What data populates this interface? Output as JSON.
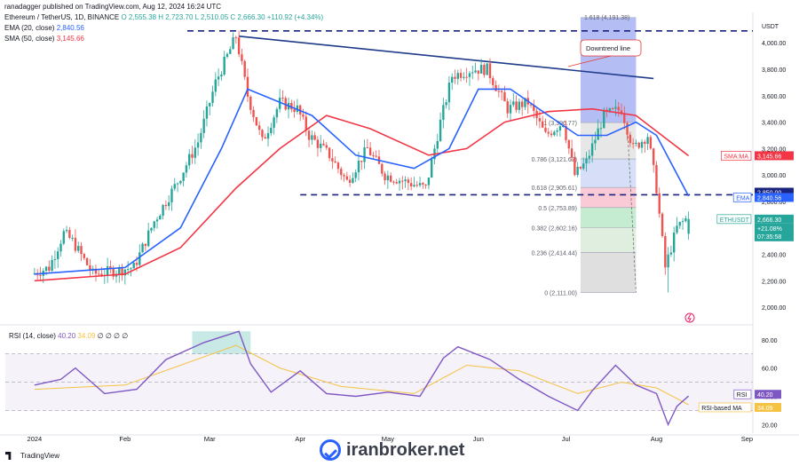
{
  "header": {
    "published": "ranadagger published on TradingView.com, Aug 12, 2024 16:24 UTC",
    "symbol": "Ethereum / TetherUS, 1D, BINANCE",
    "ohlc": "O 2,555.38  H 2,723.70  L 2,510.05  C 2,666.30  +110.92 (+4.34%)",
    "ema_label": "EMA (20, close)",
    "ema_value": "2,840.56",
    "sma_label": "SMA (50, close)",
    "sma_value": "3,145.66"
  },
  "rsi_header": {
    "label": "RSI (14, close)",
    "rsi": "40.20",
    "ma": "34.09",
    "extra": "∅ ∅ ∅ ∅"
  },
  "footer": {
    "brand": "TradingView"
  },
  "watermark": "iranbroker.net",
  "colors": {
    "up": "#26a69a",
    "down": "#ef5350",
    "ema": "#2962ff",
    "sma": "#f23645",
    "rsi": "#7e57c2",
    "rsi_ma": "#f5c242",
    "trend": "#1e3a8a",
    "level": "#1a237e"
  },
  "chart_data": [
    {
      "type": "candlestick",
      "symbol": "ETHUSDT",
      "price_axis": {
        "label": "USDT",
        "ticks": [
          "4,000.00",
          "3,800.00",
          "3,600.00",
          "3,400.00",
          "3,200.00",
          "3,000.00",
          "2,800.00",
          "2,600.00",
          "2,400.00",
          "2,200.00",
          "2,000.00"
        ],
        "range": [
          1960,
          4230
        ]
      },
      "x_axis": {
        "ticks": [
          "2024",
          "Feb",
          "Mar",
          "Apr",
          "May",
          "Jun",
          "Jul",
          "Aug",
          "Sep"
        ]
      },
      "price_path": [
        [
          "2024-01-01",
          2250
        ],
        [
          "2024-01-07",
          2300
        ],
        [
          "2024-01-12",
          2560
        ],
        [
          "2024-01-15",
          2500
        ],
        [
          "2024-01-22",
          2250
        ],
        [
          "2024-01-28",
          2270
        ],
        [
          "2024-02-05",
          2300
        ],
        [
          "2024-02-12",
          2650
        ],
        [
          "2024-02-20",
          2950
        ],
        [
          "2024-02-27",
          3250
        ],
        [
          "2024-03-04",
          3700
        ],
        [
          "2024-03-11",
          4050
        ],
        [
          "2024-03-15",
          3600
        ],
        [
          "2024-03-20",
          3250
        ],
        [
          "2024-03-26",
          3550
        ],
        [
          "2024-04-01",
          3500
        ],
        [
          "2024-04-05",
          3300
        ],
        [
          "2024-04-12",
          3150
        ],
        [
          "2024-04-18",
          2950
        ],
        [
          "2024-04-25",
          3200
        ],
        [
          "2024-05-01",
          3000
        ],
        [
          "2024-05-08",
          2950
        ],
        [
          "2024-05-15",
          2900
        ],
        [
          "2024-05-20",
          3400
        ],
        [
          "2024-05-24",
          3750
        ],
        [
          "2024-05-31",
          3800
        ],
        [
          "2024-06-05",
          3800
        ],
        [
          "2024-06-12",
          3500
        ],
        [
          "2024-06-19",
          3550
        ],
        [
          "2024-06-25",
          3300
        ],
        [
          "2024-07-01",
          3400
        ],
        [
          "2024-07-05",
          3000
        ],
        [
          "2024-07-09",
          3100
        ],
        [
          "2024-07-15",
          3450
        ],
        [
          "2024-07-21",
          3500
        ],
        [
          "2024-07-25",
          3200
        ],
        [
          "2024-07-30",
          3300
        ],
        [
          "2024-08-02",
          2900
        ],
        [
          "2024-08-05",
          2300
        ],
        [
          "2024-08-09",
          2600
        ],
        [
          "2024-08-12",
          2666
        ]
      ],
      "last_candle": {
        "open": 2555.38,
        "high": 2723.7,
        "low": 2510.05,
        "close": 2666.3
      },
      "lows_marked": [
        [
          "2024-08-05",
          2111
        ]
      ],
      "ema20": [
        [
          "2024-01-01",
          2250
        ],
        [
          "2024-02-01",
          2300
        ],
        [
          "2024-02-20",
          2600
        ],
        [
          "2024-03-05",
          3200
        ],
        [
          "2024-03-14",
          3650
        ],
        [
          "2024-03-25",
          3550
        ],
        [
          "2024-04-05",
          3450
        ],
        [
          "2024-04-20",
          3150
        ],
        [
          "2024-05-10",
          3050
        ],
        [
          "2024-05-22",
          3200
        ],
        [
          "2024-06-01",
          3650
        ],
        [
          "2024-06-12",
          3650
        ],
        [
          "2024-06-25",
          3450
        ],
        [
          "2024-07-05",
          3300
        ],
        [
          "2024-07-15",
          3300
        ],
        [
          "2024-07-25",
          3400
        ],
        [
          "2024-08-01",
          3300
        ],
        [
          "2024-08-12",
          2840.56
        ]
      ],
      "sma50": [
        [
          "2024-01-01",
          2200
        ],
        [
          "2024-02-01",
          2250
        ],
        [
          "2024-02-20",
          2450
        ],
        [
          "2024-03-10",
          2900
        ],
        [
          "2024-03-25",
          3200
        ],
        [
          "2024-04-10",
          3450
        ],
        [
          "2024-04-25",
          3350
        ],
        [
          "2024-05-15",
          3150
        ],
        [
          "2024-05-28",
          3200
        ],
        [
          "2024-06-10",
          3400
        ],
        [
          "2024-06-25",
          3480
        ],
        [
          "2024-07-10",
          3500
        ],
        [
          "2024-07-25",
          3450
        ],
        [
          "2024-08-12",
          3145.66
        ]
      ],
      "downtrend_line": {
        "from": [
          "2024-03-11",
          4050
        ],
        "to": [
          "2024-07-31",
          3730
        ],
        "label": "Downtrend line"
      },
      "horizontal_levels": [
        4090,
        2850
      ],
      "fibonacci": [
        {
          "ratio": "1.618",
          "price": 4191.38,
          "text": "1.618 (4,191.38)"
        },
        {
          "ratio": "1",
          "price": 3396.77,
          "text": "1 (3,396.77)"
        },
        {
          "ratio": "0.786",
          "price": 3121.67,
          "text": "0.786 (3,121.67)"
        },
        {
          "ratio": "0.618",
          "price": 2905.61,
          "text": "0.618 (2,905.61)"
        },
        {
          "ratio": "0.5",
          "price": 2753.89,
          "text": "0.5 (2,753.89)"
        },
        {
          "ratio": "0.382",
          "price": 2602.16,
          "text": "0.382 (2,602.16)"
        },
        {
          "ratio": "0.236",
          "price": 2414.44,
          "text": "0.236 (2,414.44)"
        },
        {
          "ratio": "0",
          "price": 2111.0,
          "text": "0 (2,111.00)"
        }
      ],
      "price_tags": [
        {
          "text": "SMA:MA",
          "value": "3,145.66",
          "color": "#f23645",
          "price": 3145.66
        },
        {
          "text": "",
          "value": "2,850.00",
          "color": "#1a237e",
          "price": 2870
        },
        {
          "text": "EMA",
          "value": "2,840.56",
          "color": "#2962ff",
          "price": 2830
        },
        {
          "text": "ETHUSDT",
          "value": "2,666.30",
          "color": "#26a69a",
          "price": 2666.3
        }
      ],
      "price_tag_extra": [
        "+21.08%",
        "07:35:58"
      ]
    },
    {
      "type": "line",
      "title": "RSI (14, close)",
      "y_ticks": [
        "80.00",
        "60.00",
        "40.00",
        "20.00"
      ],
      "range": [
        14,
        88
      ],
      "band": [
        30,
        70
      ],
      "rsi": [
        [
          "2024-01-01",
          48
        ],
        [
          "2024-01-10",
          52
        ],
        [
          "2024-01-15",
          60
        ],
        [
          "2024-01-25",
          42
        ],
        [
          "2024-02-05",
          45
        ],
        [
          "2024-02-15",
          66
        ],
        [
          "2024-02-28",
          78
        ],
        [
          "2024-03-05",
          82
        ],
        [
          "2024-03-11",
          86
        ],
        [
          "2024-03-15",
          63
        ],
        [
          "2024-03-22",
          43
        ],
        [
          "2024-04-01",
          58
        ],
        [
          "2024-04-10",
          42
        ],
        [
          "2024-04-20",
          40
        ],
        [
          "2024-05-01",
          43
        ],
        [
          "2024-05-12",
          40
        ],
        [
          "2024-05-20",
          67
        ],
        [
          "2024-05-25",
          75
        ],
        [
          "2024-06-05",
          66
        ],
        [
          "2024-06-15",
          52
        ],
        [
          "2024-06-25",
          40
        ],
        [
          "2024-07-05",
          30
        ],
        [
          "2024-07-10",
          44
        ],
        [
          "2024-07-18",
          62
        ],
        [
          "2024-07-25",
          48
        ],
        [
          "2024-08-01",
          42
        ],
        [
          "2024-08-05",
          20
        ],
        [
          "2024-08-08",
          33
        ],
        [
          "2024-08-12",
          40.2
        ]
      ],
      "rsi_ma": [
        [
          "2024-01-01",
          45
        ],
        [
          "2024-02-01",
          48
        ],
        [
          "2024-02-20",
          62
        ],
        [
          "2024-03-10",
          76
        ],
        [
          "2024-03-25",
          60
        ],
        [
          "2024-04-15",
          47
        ],
        [
          "2024-05-10",
          42
        ],
        [
          "2024-05-28",
          62
        ],
        [
          "2024-06-15",
          58
        ],
        [
          "2024-07-05",
          42
        ],
        [
          "2024-07-20",
          50
        ],
        [
          "2024-08-01",
          46
        ],
        [
          "2024-08-12",
          34.09
        ]
      ],
      "tags": [
        {
          "text": "RSI",
          "value": "40.20",
          "color": "#7e57c2",
          "level": 40.2
        },
        {
          "text": "RSI-based MA",
          "value": "34.09",
          "color": "#f5c242",
          "level": 34.09
        }
      ]
    }
  ]
}
